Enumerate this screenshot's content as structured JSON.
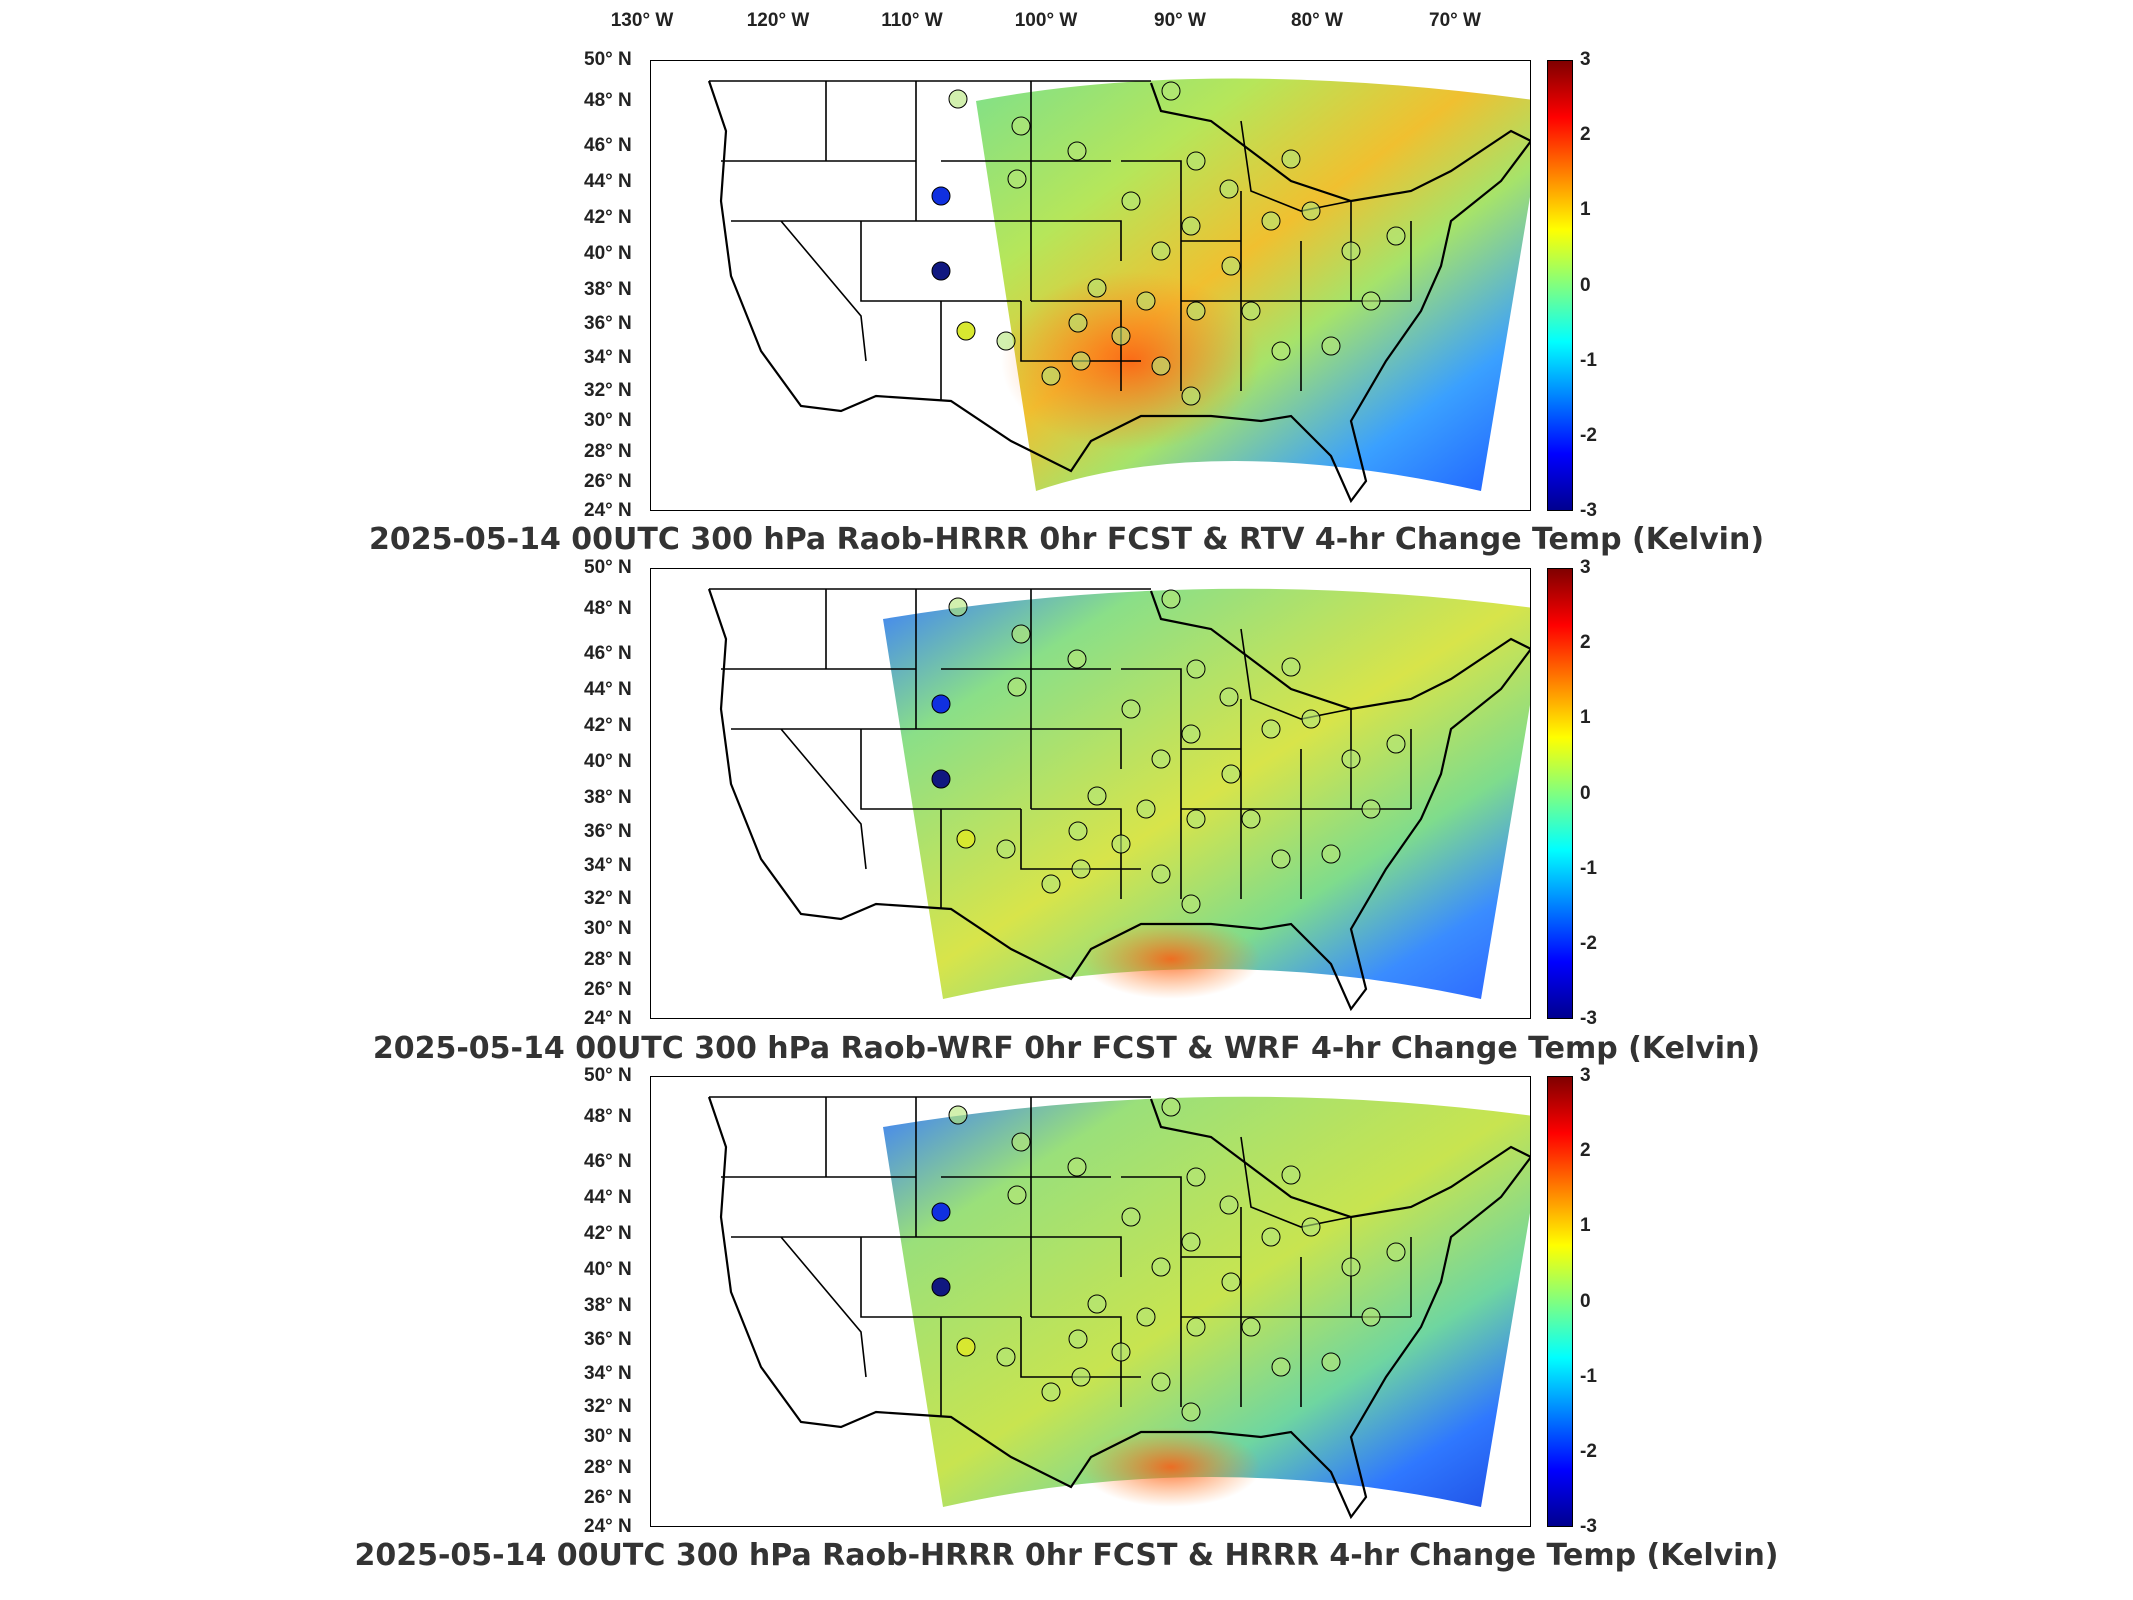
{
  "lon_ticks": [
    "130° W",
    "120° W",
    "110° W",
    "100° W",
    "90° W",
    "80° W",
    "70° W"
  ],
  "lat_ticks": [
    "50° N",
    "48° N",
    "46° N",
    "44° N",
    "42° N",
    "40° N",
    "38° N",
    "36° N",
    "34° N",
    "32° N",
    "30° N",
    "28° N",
    "26° N",
    "24° N"
  ],
  "colorbar_ticks": [
    "3",
    "2",
    "1",
    "0",
    "-1",
    "-2",
    "-3"
  ],
  "colorbar": {
    "min": -3,
    "max": 3,
    "colormap": "jet"
  },
  "panels": [
    {
      "caption": "2025-05-14 00UTC 300 hPa Raob-HRRR 0hr FCST & RTV 4-hr Change Temp (Kelvin)",
      "dominant_color": "#8fe070"
    },
    {
      "caption": "2025-05-14 00UTC 300 hPa Raob-WRF 0hr FCST & WRF 4-hr Change Temp (Kelvin)",
      "dominant_color": "#b8e860"
    },
    {
      "caption": "2025-05-14 00UTC 300 hPa Raob-HRRR 0hr FCST & HRRR 4-hr Change Temp (Kelvin)",
      "dominant_color": "#a8e468"
    }
  ]
}
